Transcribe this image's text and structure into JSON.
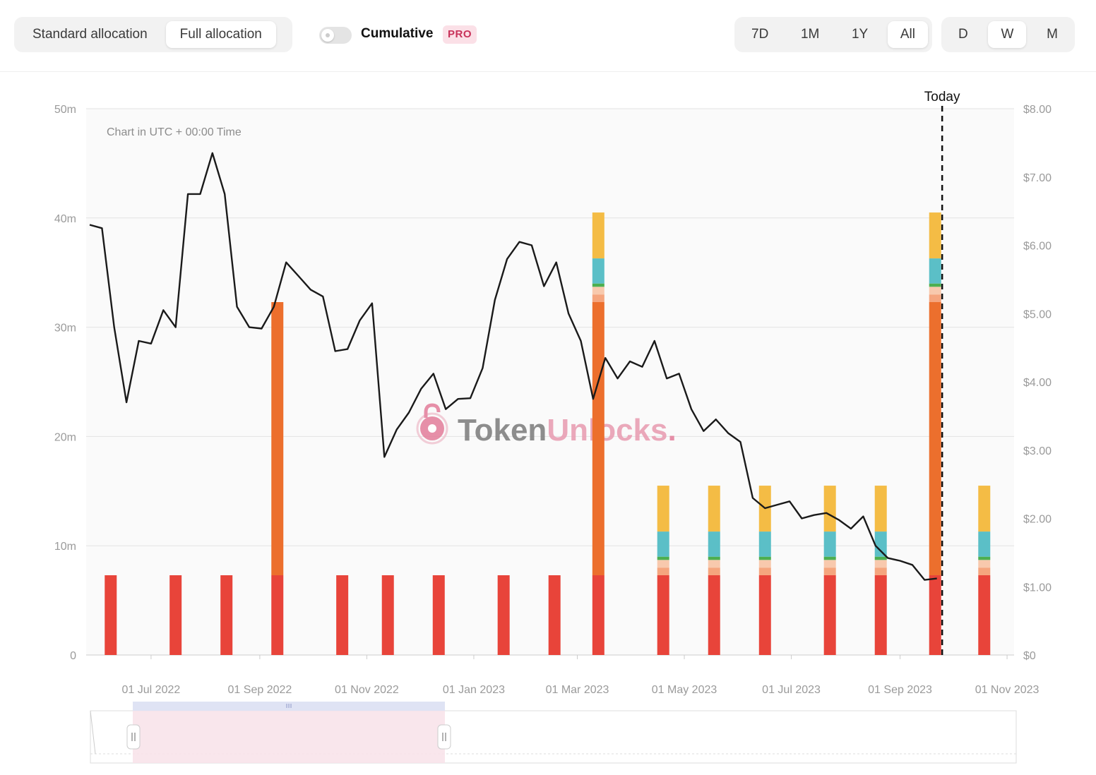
{
  "toolbar": {
    "allocation_tabs": [
      {
        "label": "Standard allocation",
        "active": false
      },
      {
        "label": "Full allocation",
        "active": true
      }
    ],
    "cumulative_label": "Cumulative",
    "cumulative_on": false,
    "pro_badge": "PRO",
    "range_tabs": [
      {
        "label": "7D",
        "active": false
      },
      {
        "label": "1M",
        "active": false
      },
      {
        "label": "1Y",
        "active": false
      },
      {
        "label": "All",
        "active": true
      }
    ],
    "granularity_tabs": [
      {
        "label": "D",
        "active": false
      },
      {
        "label": "W",
        "active": true
      },
      {
        "label": "M",
        "active": false
      }
    ]
  },
  "colors": {
    "red": "#e8443a",
    "orange": "#ec6f2d",
    "peach": "#f5a57e",
    "light_peach": "#f8c9ad",
    "green": "#4caf50",
    "teal": "#5bbfc7",
    "yellow": "#f4bc45",
    "line": "#1a1a1a",
    "brand_pink": "#e37d9a"
  },
  "watermark": {
    "part1": "Token",
    "part2": "Unlocks",
    "dot": "."
  },
  "chart_data": {
    "type": "bar",
    "title": "",
    "note": "Chart in UTC + 00:00 Time",
    "today_label": "Today",
    "today_date": "2023-09-25",
    "x_range": [
      "2022-05-25",
      "2023-11-05"
    ],
    "x_ticks": [
      "01 Jul 2022",
      "01 Sep 2022",
      "01 Nov 2022",
      "01 Jan 2023",
      "01 Mar 2023",
      "01 May 2023",
      "01 Jul 2023",
      "01 Sep 2023",
      "01 Nov 2023"
    ],
    "x_tick_dates": [
      "2022-07-01",
      "2022-09-01",
      "2022-11-01",
      "2023-01-01",
      "2023-03-01",
      "2023-05-01",
      "2023-07-01",
      "2023-09-01",
      "2023-11-01"
    ],
    "y_left": {
      "ticks": [
        "0",
        "10m",
        "20m",
        "30m",
        "40m",
        "50m"
      ],
      "range": [
        0,
        50000000
      ]
    },
    "y_right": {
      "ticks": [
        "$0",
        "$1.00",
        "$2.00",
        "$3.00",
        "$4.00",
        "$5.00",
        "$6.00",
        "$7.00",
        "$8.00"
      ],
      "range": [
        0,
        8
      ]
    },
    "series_colors": [
      "red",
      "orange",
      "peach",
      "light_peach",
      "green",
      "teal",
      "yellow"
    ],
    "bars": [
      {
        "date": "2022-06-08",
        "segments": [
          7.3
        ]
      },
      {
        "date": "2022-07-15",
        "segments": [
          7.3
        ]
      },
      {
        "date": "2022-08-13",
        "segments": [
          7.3
        ]
      },
      {
        "date": "2022-09-11",
        "segments": [
          7.3,
          25.0
        ]
      },
      {
        "date": "2022-10-18",
        "segments": [
          7.3
        ]
      },
      {
        "date": "2022-11-13",
        "segments": [
          7.3
        ]
      },
      {
        "date": "2022-12-12",
        "segments": [
          7.3
        ]
      },
      {
        "date": "2023-01-18",
        "segments": [
          7.3
        ]
      },
      {
        "date": "2023-02-16",
        "segments": [
          7.3
        ]
      },
      {
        "date": "2023-03-13",
        "segments": [
          7.3,
          25.0,
          0.7,
          0.7,
          0.3,
          2.3,
          4.2
        ]
      },
      {
        "date": "2023-04-19",
        "segments": [
          7.3,
          0,
          0.7,
          0.7,
          0.3,
          2.3,
          4.2
        ]
      },
      {
        "date": "2023-05-18",
        "segments": [
          7.3,
          0,
          0.7,
          0.7,
          0.3,
          2.3,
          4.2
        ]
      },
      {
        "date": "2023-06-16",
        "segments": [
          7.3,
          0,
          0.7,
          0.7,
          0.3,
          2.3,
          4.2
        ]
      },
      {
        "date": "2023-07-23",
        "segments": [
          7.3,
          0,
          0.7,
          0.7,
          0.3,
          2.3,
          4.2
        ]
      },
      {
        "date": "2023-08-21",
        "segments": [
          7.3,
          0,
          0.7,
          0.7,
          0.3,
          2.3,
          4.2
        ]
      },
      {
        "date": "2023-09-21",
        "segments": [
          7.3,
          25.0,
          0.7,
          0.7,
          0.3,
          2.3,
          4.2
        ]
      },
      {
        "date": "2023-10-19",
        "segments": [
          7.3,
          0,
          0.7,
          0.7,
          0.3,
          2.3,
          4.2
        ]
      }
    ],
    "bar_unit": "millions",
    "price_series": {
      "name": "Price",
      "points": [
        [
          "2022-05-27",
          6.3
        ],
        [
          "2022-06-03",
          6.25
        ],
        [
          "2022-06-10",
          4.8
        ],
        [
          "2022-06-17",
          3.7
        ],
        [
          "2022-06-24",
          4.6
        ],
        [
          "2022-07-01",
          4.56
        ],
        [
          "2022-07-08",
          5.05
        ],
        [
          "2022-07-15",
          4.8
        ],
        [
          "2022-07-22",
          6.75
        ],
        [
          "2022-07-29",
          6.75
        ],
        [
          "2022-08-05",
          7.35
        ],
        [
          "2022-08-12",
          6.75
        ],
        [
          "2022-08-19",
          5.1
        ],
        [
          "2022-08-26",
          4.8
        ],
        [
          "2022-09-02",
          4.78
        ],
        [
          "2022-09-09",
          5.1
        ],
        [
          "2022-09-16",
          5.75
        ],
        [
          "2022-09-23",
          5.55
        ],
        [
          "2022-09-30",
          5.35
        ],
        [
          "2022-10-07",
          5.25
        ],
        [
          "2022-10-14",
          4.45
        ],
        [
          "2022-10-21",
          4.48
        ],
        [
          "2022-10-28",
          4.9
        ],
        [
          "2022-11-04",
          5.15
        ],
        [
          "2022-11-11",
          2.9
        ],
        [
          "2022-11-18",
          3.3
        ],
        [
          "2022-11-25",
          3.55
        ],
        [
          "2022-12-02",
          3.9
        ],
        [
          "2022-12-09",
          4.12
        ],
        [
          "2022-12-16",
          3.6
        ],
        [
          "2022-12-23",
          3.75
        ],
        [
          "2022-12-30",
          3.76
        ],
        [
          "2023-01-06",
          4.2
        ],
        [
          "2023-01-13",
          5.2
        ],
        [
          "2023-01-20",
          5.8
        ],
        [
          "2023-01-27",
          6.05
        ],
        [
          "2023-02-03",
          6.0
        ],
        [
          "2023-02-10",
          5.4
        ],
        [
          "2023-02-17",
          5.75
        ],
        [
          "2023-02-24",
          5.0
        ],
        [
          "2023-03-03",
          4.6
        ],
        [
          "2023-03-10",
          3.75
        ],
        [
          "2023-03-17",
          4.35
        ],
        [
          "2023-03-24",
          4.05
        ],
        [
          "2023-03-31",
          4.3
        ],
        [
          "2023-04-07",
          4.22
        ],
        [
          "2023-04-14",
          4.6
        ],
        [
          "2023-04-21",
          4.05
        ],
        [
          "2023-04-28",
          4.12
        ],
        [
          "2023-05-05",
          3.6
        ],
        [
          "2023-05-12",
          3.28
        ],
        [
          "2023-05-19",
          3.45
        ],
        [
          "2023-05-26",
          3.25
        ],
        [
          "2023-06-02",
          3.12
        ],
        [
          "2023-06-09",
          2.3
        ],
        [
          "2023-06-16",
          2.15
        ],
        [
          "2023-06-23",
          2.2
        ],
        [
          "2023-06-30",
          2.25
        ],
        [
          "2023-07-07",
          2.0
        ],
        [
          "2023-07-14",
          2.05
        ],
        [
          "2023-07-21",
          2.08
        ],
        [
          "2023-07-28",
          1.98
        ],
        [
          "2023-08-04",
          1.85
        ],
        [
          "2023-08-11",
          2.03
        ],
        [
          "2023-08-18",
          1.6
        ],
        [
          "2023-08-25",
          1.42
        ],
        [
          "2023-09-01",
          1.38
        ],
        [
          "2023-09-08",
          1.32
        ],
        [
          "2023-09-15",
          1.1
        ],
        [
          "2023-09-22",
          1.12
        ]
      ]
    }
  }
}
